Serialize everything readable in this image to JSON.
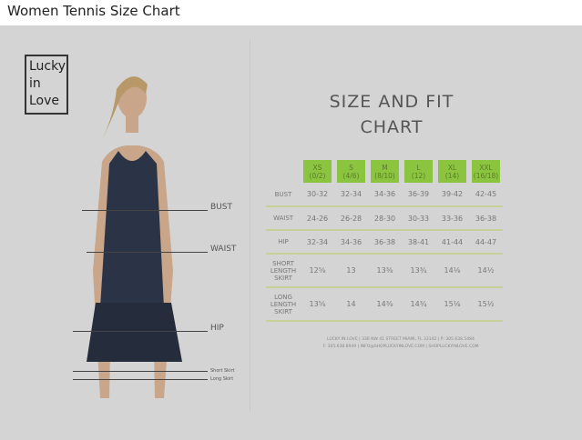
{
  "page": {
    "title": "Women Tennis Size Chart"
  },
  "logo": {
    "line1": "Lucky",
    "line2": "in",
    "line3": "Love"
  },
  "chart": {
    "heading_line1": "SIZE AND FIT",
    "heading_line2": "CHART"
  },
  "figure": {
    "labels": [
      "BUST",
      "WAIST",
      "HIP",
      "Short Skirt",
      "Long Skirt"
    ]
  },
  "table": {
    "sizes": [
      {
        "size": "XS",
        "num": "(0/2)"
      },
      {
        "size": "S",
        "num": "(4/6)"
      },
      {
        "size": "M",
        "num": "(8/10)"
      },
      {
        "size": "L",
        "num": "(12)"
      },
      {
        "size": "XL",
        "num": "(14)"
      },
      {
        "size": "XXL",
        "num": "(16/18)"
      }
    ],
    "rows": [
      {
        "label": "BUST",
        "values": [
          "30-32",
          "32-34",
          "34-36",
          "36-39",
          "39-42",
          "42-45"
        ]
      },
      {
        "label": "WAIST",
        "values": [
          "24-26",
          "26-28",
          "28-30",
          "30-33",
          "33-36",
          "36-38"
        ]
      },
      {
        "label": "HIP",
        "values": [
          "32-34",
          "34-36",
          "36-38",
          "38-41",
          "41-44",
          "44-47"
        ]
      },
      {
        "label": "SHORT LENGTH SKIRT",
        "values": [
          "12⅝",
          "13",
          "13⅜",
          "13¾",
          "14⅛",
          "14½"
        ]
      },
      {
        "label": "LONG LENGTH SKIRT",
        "values": [
          "13⅝",
          "14",
          "14⅜",
          "14¾",
          "15⅛",
          "15½"
        ]
      }
    ]
  },
  "footer": {
    "line1": "LUCKY IN LOVE | 330 NW 41 STREET MIAMI, FL 33142 | P: 305.638.5484",
    "line2": "F: 305.638.8949 | INFO@SHOPLUCKYINLOVE.COM | SHOPLUCKYINLOVE.COM"
  },
  "colors": {
    "accent": "#8bc53f",
    "background": "#d4d4d4"
  }
}
